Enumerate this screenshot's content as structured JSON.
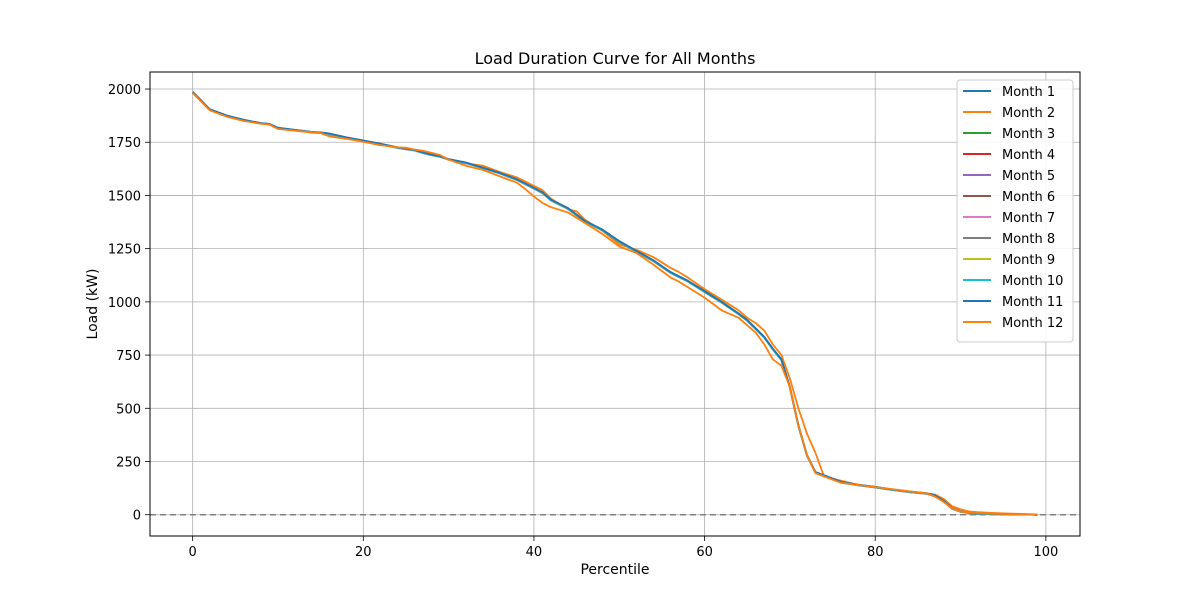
{
  "chart_data": {
    "type": "line",
    "title": "Load Duration Curve for All Months",
    "xlabel": "Percentile",
    "ylabel": "Load (kW)",
    "xlim": [
      -5,
      104
    ],
    "ylim": [
      -100,
      2080
    ],
    "xticks": [
      0,
      20,
      40,
      60,
      80,
      100
    ],
    "yticks": [
      0,
      250,
      500,
      750,
      1000,
      1250,
      1500,
      1750,
      2000
    ],
    "grid": true,
    "legend_position": "top-right",
    "reference_line": {
      "y": 0,
      "style": "dashed",
      "color": "#808080"
    },
    "x": [
      0,
      2,
      4,
      6,
      8,
      9,
      10,
      12,
      14,
      15,
      16,
      18,
      20,
      22,
      24,
      25,
      26,
      27,
      28,
      29,
      30,
      32,
      34,
      36,
      38,
      39,
      40,
      41,
      42,
      44,
      45,
      46,
      48,
      50,
      52,
      54,
      56,
      57,
      58,
      60,
      62,
      64,
      65,
      66,
      67,
      68,
      69,
      70,
      71,
      72,
      73,
      74,
      76,
      78,
      80,
      82,
      84,
      86,
      87,
      88,
      89,
      90,
      91,
      92,
      94,
      96,
      98,
      99
    ],
    "series": [
      {
        "name": "Month 1",
        "color": "#1f77b4",
        "values": [
          1985,
          1905,
          1875,
          1855,
          1840,
          1835,
          1818,
          1808,
          1798,
          1795,
          1790,
          1772,
          1758,
          1742,
          1725,
          1718,
          1712,
          1700,
          1690,
          1682,
          1670,
          1655,
          1630,
          1605,
          1575,
          1555,
          1535,
          1515,
          1480,
          1440,
          1410,
          1380,
          1340,
          1285,
          1240,
          1195,
          1140,
          1120,
          1100,
          1050,
          1000,
          945,
          915,
          875,
          835,
          780,
          730,
          600,
          420,
          280,
          200,
          185,
          155,
          140,
          130,
          118,
          108,
          100,
          90,
          65,
          30,
          15,
          8,
          5,
          3,
          2,
          1,
          0
        ]
      },
      {
        "name": "Month 2",
        "color": "#ff7f0e",
        "values": [
          1988,
          1905,
          1872,
          1852,
          1838,
          1835,
          1815,
          1805,
          1795,
          1793,
          1780,
          1768,
          1752,
          1738,
          1725,
          1722,
          1715,
          1708,
          1698,
          1688,
          1670,
          1650,
          1640,
          1610,
          1585,
          1565,
          1545,
          1525,
          1485,
          1435,
          1425,
          1385,
          1335,
          1270,
          1245,
          1210,
          1160,
          1140,
          1115,
          1060,
          1010,
          960,
          925,
          900,
          865,
          800,
          750,
          640,
          500,
          380,
          290,
          180,
          160,
          140,
          128,
          118,
          108,
          100,
          95,
          75,
          40,
          25,
          15,
          12,
          8,
          5,
          3,
          1
        ]
      },
      {
        "name": "Month 3",
        "color": "#2ca02c",
        "values": [
          1982,
          1902,
          1873,
          1853,
          1838,
          1834,
          1816,
          1806,
          1796,
          1794,
          1788,
          1770,
          1755,
          1740,
          1723,
          1717,
          1711,
          1699,
          1689,
          1681,
          1668,
          1652,
          1628,
          1603,
          1572,
          1552,
          1532,
          1510,
          1476,
          1436,
          1406,
          1376,
          1336,
          1281,
          1236,
          1191,
          1136,
          1116,
          1096,
          1046,
          996,
          941,
          911,
          871,
          831,
          776,
          726,
          596,
          416,
          276,
          196,
          181,
          151,
          138,
          128,
          116,
          106,
          98,
          88,
          63,
          28,
          13,
          7,
          4,
          2,
          1,
          1,
          0
        ]
      },
      {
        "name": "Month 4",
        "color": "#d62728",
        "values": [
          1984,
          1903,
          1874,
          1854,
          1839,
          1835,
          1817,
          1807,
          1797,
          1795,
          1789,
          1771,
          1756,
          1741,
          1724,
          1718,
          1712,
          1700,
          1690,
          1682,
          1669,
          1653,
          1629,
          1604,
          1573,
          1553,
          1533,
          1512,
          1478,
          1438,
          1408,
          1378,
          1338,
          1283,
          1238,
          1193,
          1138,
          1118,
          1098,
          1048,
          998,
          943,
          913,
          873,
          833,
          778,
          728,
          598,
          418,
          278,
          198,
          183,
          153,
          139,
          129,
          117,
          107,
          99,
          89,
          64,
          29,
          14,
          8,
          5,
          3,
          2,
          1,
          0
        ]
      },
      {
        "name": "Month 5",
        "color": "#9467bd",
        "values": [
          1983,
          1903,
          1873,
          1853,
          1838,
          1834,
          1816,
          1806,
          1796,
          1794,
          1789,
          1771,
          1756,
          1741,
          1724,
          1718,
          1712,
          1700,
          1690,
          1682,
          1669,
          1653,
          1629,
          1604,
          1574,
          1554,
          1534,
          1513,
          1478,
          1438,
          1408,
          1378,
          1338,
          1283,
          1238,
          1193,
          1138,
          1118,
          1098,
          1048,
          998,
          943,
          913,
          873,
          833,
          778,
          728,
          598,
          418,
          278,
          198,
          183,
          153,
          139,
          129,
          117,
          107,
          99,
          89,
          64,
          29,
          14,
          8,
          5,
          3,
          2,
          1,
          0
        ]
      },
      {
        "name": "Month 6",
        "color": "#8c564b",
        "values": [
          1984,
          1904,
          1874,
          1854,
          1839,
          1835,
          1817,
          1807,
          1797,
          1795,
          1790,
          1772,
          1757,
          1742,
          1725,
          1719,
          1713,
          1701,
          1691,
          1683,
          1670,
          1654,
          1630,
          1605,
          1575,
          1555,
          1535,
          1514,
          1479,
          1439,
          1409,
          1379,
          1339,
          1284,
          1239,
          1194,
          1139,
          1119,
          1099,
          1049,
          999,
          944,
          914,
          874,
          834,
          779,
          729,
          599,
          419,
          279,
          199,
          184,
          154,
          140,
          130,
          118,
          108,
          100,
          90,
          65,
          30,
          15,
          8,
          5,
          3,
          2,
          1,
          0
        ]
      },
      {
        "name": "Month 7",
        "color": "#e377c2",
        "values": [
          1983,
          1903,
          1873,
          1853,
          1838,
          1834,
          1816,
          1806,
          1796,
          1794,
          1788,
          1770,
          1755,
          1740,
          1723,
          1717,
          1711,
          1699,
          1689,
          1681,
          1668,
          1652,
          1628,
          1603,
          1573,
          1553,
          1533,
          1512,
          1477,
          1437,
          1407,
          1377,
          1337,
          1282,
          1237,
          1192,
          1137,
          1117,
          1097,
          1047,
          997,
          942,
          912,
          872,
          832,
          777,
          727,
          597,
          417,
          277,
          197,
          182,
          152,
          138,
          128,
          116,
          106,
          98,
          88,
          63,
          28,
          13,
          7,
          4,
          2,
          1,
          1,
          0
        ]
      },
      {
        "name": "Month 8",
        "color": "#7f7f7f",
        "values": [
          1984,
          1904,
          1874,
          1854,
          1839,
          1835,
          1817,
          1807,
          1797,
          1795,
          1790,
          1772,
          1757,
          1742,
          1725,
          1719,
          1713,
          1701,
          1691,
          1683,
          1670,
          1654,
          1630,
          1605,
          1575,
          1555,
          1535,
          1514,
          1479,
          1439,
          1409,
          1379,
          1339,
          1284,
          1239,
          1194,
          1139,
          1119,
          1099,
          1049,
          999,
          944,
          914,
          874,
          834,
          779,
          729,
          599,
          419,
          279,
          199,
          184,
          154,
          140,
          130,
          118,
          108,
          100,
          90,
          65,
          30,
          15,
          8,
          5,
          3,
          2,
          1,
          0
        ]
      },
      {
        "name": "Month 9",
        "color": "#bcbd22",
        "values": [
          1983,
          1903,
          1873,
          1853,
          1838,
          1834,
          1816,
          1806,
          1796,
          1794,
          1789,
          1771,
          1756,
          1741,
          1724,
          1718,
          1712,
          1700,
          1690,
          1682,
          1669,
          1653,
          1629,
          1604,
          1574,
          1554,
          1534,
          1513,
          1478,
          1438,
          1408,
          1378,
          1338,
          1283,
          1238,
          1193,
          1138,
          1118,
          1098,
          1048,
          998,
          943,
          913,
          873,
          833,
          778,
          728,
          598,
          418,
          278,
          198,
          183,
          153,
          139,
          129,
          117,
          107,
          99,
          89,
          64,
          29,
          14,
          8,
          5,
          3,
          2,
          1,
          0
        ]
      },
      {
        "name": "Month 10",
        "color": "#17becf",
        "values": [
          1984,
          1904,
          1874,
          1854,
          1839,
          1835,
          1817,
          1807,
          1797,
          1795,
          1789,
          1771,
          1756,
          1741,
          1724,
          1718,
          1712,
          1700,
          1690,
          1682,
          1669,
          1653,
          1629,
          1604,
          1574,
          1554,
          1534,
          1513,
          1478,
          1438,
          1408,
          1378,
          1338,
          1283,
          1238,
          1193,
          1138,
          1118,
          1098,
          1048,
          998,
          943,
          913,
          873,
          833,
          778,
          728,
          598,
          418,
          278,
          198,
          183,
          153,
          139,
          129,
          117,
          107,
          99,
          89,
          64,
          29,
          14,
          8,
          5,
          3,
          2,
          1,
          0
        ]
      },
      {
        "name": "Month 11",
        "color": "#1f77b4",
        "values": [
          1986,
          1905,
          1875,
          1855,
          1840,
          1836,
          1818,
          1808,
          1798,
          1796,
          1791,
          1773,
          1758,
          1743,
          1726,
          1720,
          1714,
          1702,
          1692,
          1684,
          1671,
          1655,
          1631,
          1606,
          1576,
          1556,
          1536,
          1515,
          1480,
          1440,
          1410,
          1380,
          1340,
          1285,
          1240,
          1195,
          1140,
          1120,
          1100,
          1050,
          1000,
          945,
          915,
          875,
          835,
          780,
          730,
          600,
          420,
          280,
          200,
          185,
          155,
          141,
          131,
          119,
          109,
          101,
          91,
          66,
          31,
          16,
          9,
          6,
          4,
          2,
          1,
          0
        ]
      },
      {
        "name": "Month 12",
        "color": "#ff7f0e",
        "values": [
          1982,
          1900,
          1870,
          1850,
          1837,
          1833,
          1812,
          1804,
          1796,
          1794,
          1778,
          1766,
          1752,
          1736,
          1726,
          1724,
          1716,
          1710,
          1700,
          1690,
          1668,
          1640,
          1620,
          1590,
          1560,
          1530,
          1495,
          1465,
          1445,
          1420,
          1395,
          1370,
          1320,
          1260,
          1230,
          1175,
          1115,
          1095,
          1070,
          1020,
          960,
          925,
          890,
          855,
          800,
          730,
          700,
          600,
          420,
          280,
          195,
          180,
          150,
          140,
          130,
          120,
          110,
          100,
          85,
          60,
          30,
          15,
          10,
          8,
          5,
          3,
          2,
          1
        ]
      }
    ]
  }
}
